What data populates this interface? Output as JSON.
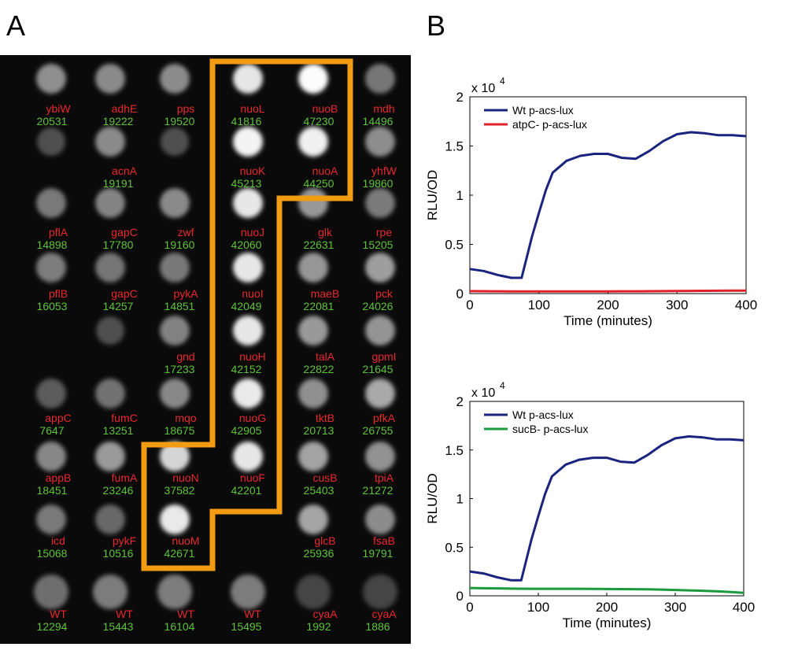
{
  "panel_labels": [
    "A",
    "B"
  ],
  "panel_a": {
    "rows": [
      [
        {
          "gene": "ybiW",
          "value": 20531
        },
        {
          "gene": "adhE",
          "value": 19222
        },
        {
          "gene": "pps",
          "value": 19520
        },
        {
          "gene": "nuoL",
          "value": 41816
        },
        {
          "gene": "nuoB",
          "value": 47230
        },
        {
          "gene": "mdh",
          "value": 14496
        }
      ],
      [
        null,
        {
          "gene": "acnA",
          "value": 19191
        },
        null,
        {
          "gene": "nuoK",
          "value": 45213
        },
        {
          "gene": "nuoA",
          "value": 44250
        },
        {
          "gene": "yhfW",
          "value": 19860
        }
      ],
      [
        {
          "gene": "pflA",
          "value": 14898
        },
        {
          "gene": "gapC",
          "value": 17780
        },
        {
          "gene": "zwf",
          "value": 19160
        },
        {
          "gene": "nuoJ",
          "value": 42060
        },
        {
          "gene": "glk",
          "value": 22631
        },
        {
          "gene": "rpe",
          "value": 15205
        }
      ],
      [
        {
          "gene": "pflB",
          "value": 16053
        },
        {
          "gene": "gapC",
          "value": 14257
        },
        {
          "gene": "pykA",
          "value": 14851
        },
        {
          "gene": "nuoI",
          "value": 42049
        },
        {
          "gene": "maeB",
          "value": 22081
        },
        {
          "gene": "pck",
          "value": 24026
        }
      ],
      [
        null,
        null,
        {
          "gene": "gnd",
          "value": 17233
        },
        {
          "gene": "nuoH",
          "value": 42152
        },
        {
          "gene": "talA",
          "value": 22822
        },
        {
          "gene": "gpmI",
          "value": 21645
        }
      ],
      [
        {
          "gene": "appC",
          "value": 7647
        },
        {
          "gene": "fumC",
          "value": 13251
        },
        {
          "gene": "mqo",
          "value": 18675
        },
        {
          "gene": "nuoG",
          "value": 42905
        },
        {
          "gene": "tktB",
          "value": 20713
        },
        {
          "gene": "pfkA",
          "value": 26755
        }
      ],
      [
        {
          "gene": "appB",
          "value": 18451
        },
        {
          "gene": "fumA",
          "value": 23246
        },
        {
          "gene": "nuoN",
          "value": 37582
        },
        {
          "gene": "nuoF",
          "value": 42201
        },
        {
          "gene": "cusB",
          "value": 25403
        },
        {
          "gene": "tpiA",
          "value": 21272
        }
      ],
      [
        {
          "gene": "icd",
          "value": 15068
        },
        {
          "gene": "pykF",
          "value": 10516
        },
        {
          "gene": "nuoM",
          "value": 42671
        },
        null,
        {
          "gene": "glcB",
          "value": 25936
        },
        {
          "gene": "fsaB",
          "value": 19791
        }
      ],
      [
        {
          "gene": "WT",
          "value": 12294
        },
        {
          "gene": "WT",
          "value": 15443
        },
        {
          "gene": "WT",
          "value": 16104
        },
        {
          "gene": "WT",
          "value": 15495
        },
        {
          "gene": "cyaA",
          "value": 1992
        },
        {
          "gene": "cyaA",
          "value": 1886
        }
      ]
    ]
  },
  "chart_data": [
    {
      "type": "line",
      "xlabel": "Time (minutes)",
      "ylabel": "RLU/OD",
      "y_multiplier": "x 10",
      "y_multiplier_exp": "4",
      "xlim": [
        0,
        400
      ],
      "xticks": [
        0,
        100,
        200,
        300,
        400
      ],
      "ylim": [
        0,
        20000
      ],
      "yticks": [
        {
          "value": 0,
          "label": "0"
        },
        {
          "value": 5000,
          "label": "0.5"
        },
        {
          "value": 10000,
          "label": "1"
        },
        {
          "value": 15000,
          "label": "1.5"
        },
        {
          "value": 20000,
          "label": "2"
        }
      ],
      "x": [
        0,
        20,
        40,
        60,
        75,
        90,
        100,
        110,
        120,
        140,
        160,
        180,
        200,
        220,
        240,
        260,
        280,
        300,
        320,
        340,
        360,
        380,
        400
      ],
      "series": [
        {
          "name": "Wt p-acs-lux",
          "color": "#1a237e",
          "values": [
            2500,
            2300,
            1900,
            1600,
            1600,
            5800,
            8200,
            10500,
            12300,
            13500,
            14000,
            14200,
            14200,
            13800,
            13700,
            14500,
            15500,
            16200,
            16400,
            16300,
            16100,
            16100,
            16000
          ]
        },
        {
          "name": "atpC- p-acs-lux",
          "color": "#e0202a",
          "values": [
            250,
            240,
            230,
            220,
            220,
            220,
            220,
            220,
            220,
            220,
            220,
            220,
            220,
            230,
            230,
            240,
            250,
            260,
            270,
            280,
            290,
            300,
            300
          ]
        }
      ]
    },
    {
      "type": "line",
      "xlabel": "Time (minutes)",
      "ylabel": "RLU/OD",
      "y_multiplier": "x 10",
      "y_multiplier_exp": "4",
      "xlim": [
        0,
        400
      ],
      "xticks": [
        0,
        100,
        200,
        300,
        400
      ],
      "ylim": [
        0,
        20000
      ],
      "yticks": [
        {
          "value": 0,
          "label": "0"
        },
        {
          "value": 5000,
          "label": "0.5"
        },
        {
          "value": 10000,
          "label": "1"
        },
        {
          "value": 15000,
          "label": "1.5"
        },
        {
          "value": 20000,
          "label": "2"
        }
      ],
      "x": [
        0,
        20,
        40,
        60,
        75,
        90,
        100,
        110,
        120,
        140,
        160,
        180,
        200,
        220,
        240,
        260,
        280,
        300,
        320,
        340,
        360,
        380,
        400
      ],
      "series": [
        {
          "name": "Wt p-acs-lux",
          "color": "#1a237e",
          "values": [
            2500,
            2300,
            1900,
            1600,
            1600,
            5800,
            8200,
            10500,
            12300,
            13500,
            14000,
            14200,
            14200,
            13800,
            13700,
            14500,
            15500,
            16200,
            16400,
            16300,
            16100,
            16100,
            16000
          ]
        },
        {
          "name": "sucB- p-acs-lux",
          "color": "#1a9a3c",
          "values": [
            800,
            780,
            760,
            740,
            730,
            720,
            720,
            720,
            720,
            720,
            720,
            710,
            700,
            690,
            680,
            660,
            640,
            600,
            560,
            520,
            460,
            400,
            300
          ]
        }
      ]
    }
  ]
}
